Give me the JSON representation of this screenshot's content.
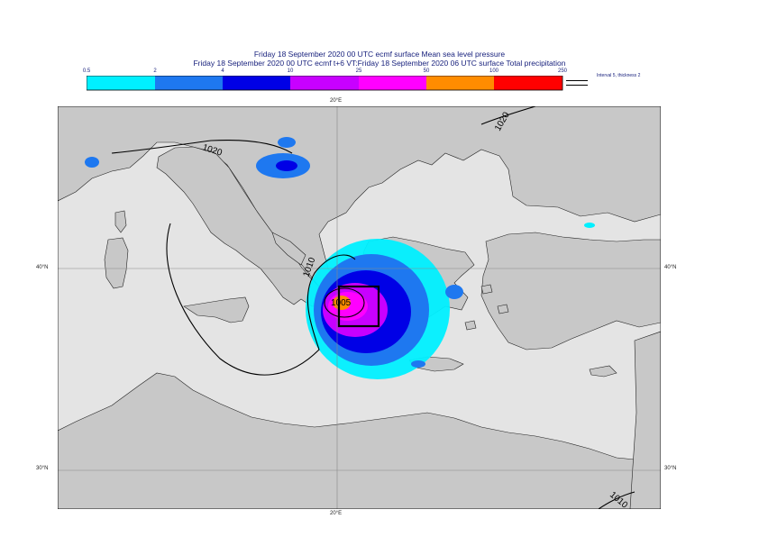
{
  "title_line1": "Friday 18 September 2020 00 UTC ecmf surface  Mean sea level pressure",
  "title_line2": "Friday 18 September 2020 00 UTC ecmf t+6 VT:Friday 18 September 2020 06 UTC surface  Total precipitation",
  "legend": {
    "ticks": [
      "0.5",
      "2",
      "4",
      "10",
      "25",
      "50",
      "100",
      "250"
    ],
    "colors": [
      "#00f0ff",
      "#1e78f0",
      "#0000e6",
      "#c800ff",
      "#ff00ff",
      "#ff8c00",
      "#ff0000"
    ],
    "note": "Interval 5, thickness 2"
  },
  "axes": {
    "top_lon": "20°E",
    "bottom_lon": "20°E",
    "left_lat_40": "40°N",
    "right_lat_40": "40°N",
    "left_lat_30": "30°N",
    "right_lat_30": "30°N"
  },
  "isobars": {
    "label_1020_west": "1020",
    "label_1020_east": "1020",
    "label_1010_west": "1010",
    "label_1010_southeast": "1010",
    "label_1005": "1005"
  }
}
